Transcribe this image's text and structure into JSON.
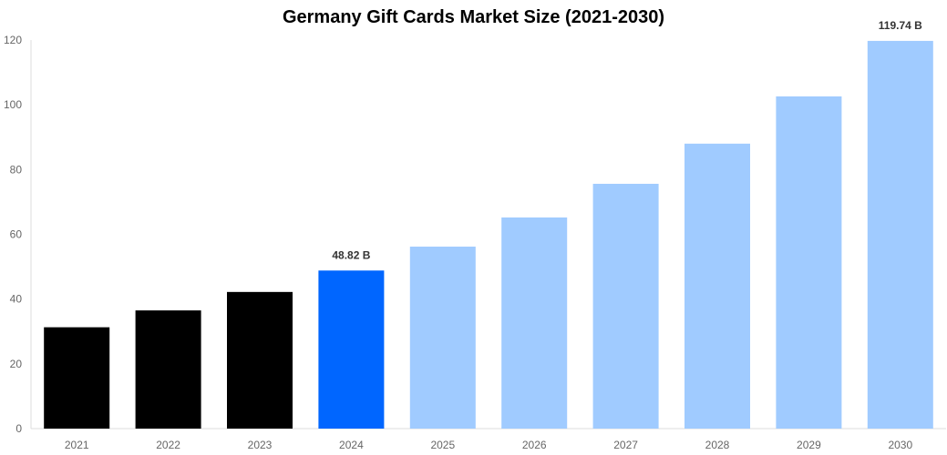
{
  "chart_data": {
    "type": "bar",
    "title": "Germany Gift Cards Market Size (2021-2030)",
    "xlabel": "",
    "ylabel": "",
    "categories": [
      "2021",
      "2022",
      "2023",
      "2024",
      "2025",
      "2026",
      "2027",
      "2028",
      "2029",
      "2030"
    ],
    "values": [
      31.3,
      36.5,
      42.2,
      48.82,
      56.2,
      65.2,
      75.6,
      88.0,
      102.6,
      119.74
    ],
    "colors": [
      "#000000",
      "#000000",
      "#000000",
      "#0066ff",
      "#a0cbff",
      "#a0cbff",
      "#a0cbff",
      "#a0cbff",
      "#a0cbff",
      "#a0cbff"
    ],
    "data_labels": {
      "3": "48.82 B",
      "9": "119.74 B"
    },
    "ylim": [
      0,
      120
    ],
    "yticks": [
      0,
      20,
      40,
      60,
      80,
      100,
      120
    ],
    "grid": false,
    "legend": "none"
  }
}
